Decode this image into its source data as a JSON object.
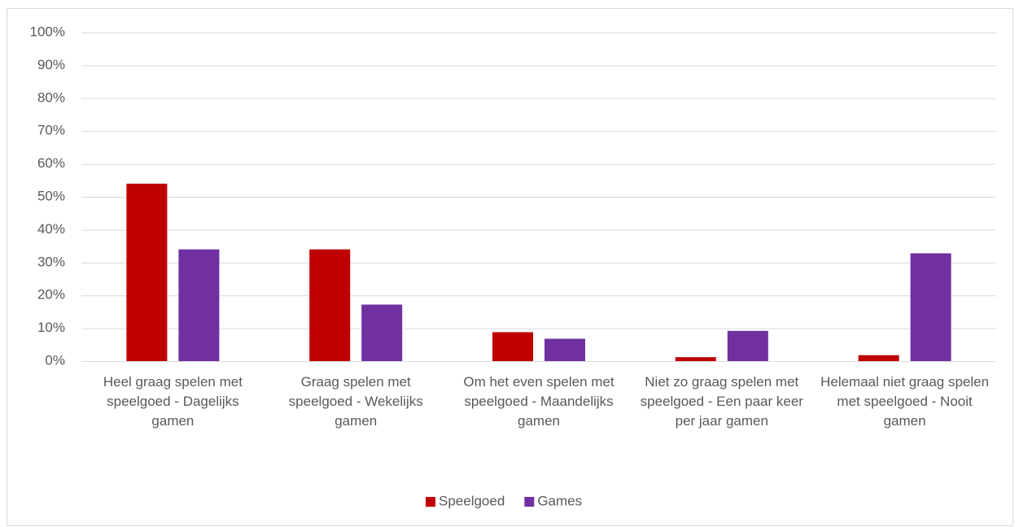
{
  "chart_data": {
    "type": "bar",
    "categories": [
      "Heel graag spelen met speelgoed - Dagelijks gamen",
      "Graag spelen met speelgoed - Wekelijks gamen",
      "Om het even spelen met speelgoed - Maandelijks gamen",
      "Niet zo graag spelen met speelgoed - Een paar keer per jaar gamen",
      "Helemaal niet graag spelen met speelgoed - Nooit gamen"
    ],
    "series": [
      {
        "name": "Speelgoed",
        "color": "#c00000",
        "values": [
          54,
          34,
          8.8,
          1.2,
          1.8
        ]
      },
      {
        "name": "Games",
        "color": "#7030a0",
        "values": [
          34,
          17.2,
          6.8,
          9.2,
          32.8
        ]
      }
    ],
    "ylim": [
      0,
      100
    ],
    "yticks": [
      {
        "value": 0,
        "label": "0%"
      },
      {
        "value": 10,
        "label": "10%"
      },
      {
        "value": 20,
        "label": "20%"
      },
      {
        "value": 30,
        "label": "30%"
      },
      {
        "value": 40,
        "label": "40%"
      },
      {
        "value": 50,
        "label": "50%"
      },
      {
        "value": 60,
        "label": "60%"
      },
      {
        "value": 70,
        "label": "70%"
      },
      {
        "value": 80,
        "label": "80%"
      },
      {
        "value": 90,
        "label": "90%"
      },
      {
        "value": 100,
        "label": "100%"
      }
    ],
    "grid": true,
    "legend": "bottom"
  }
}
